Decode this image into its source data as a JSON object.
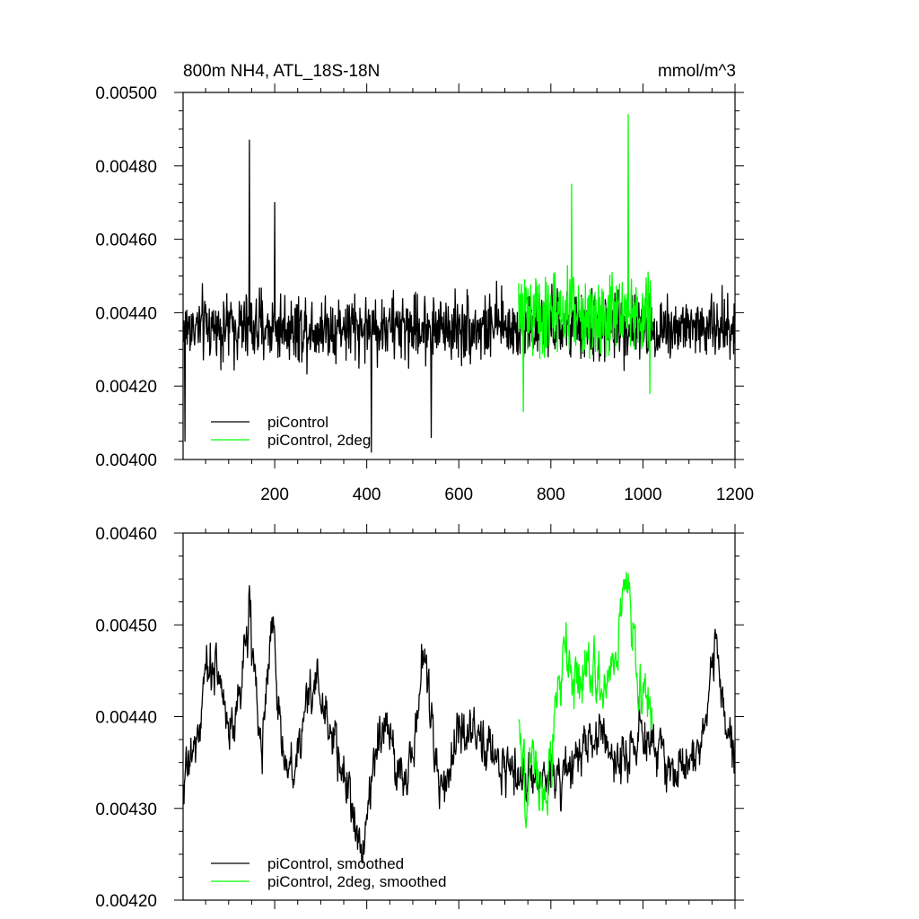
{
  "chart_data": [
    {
      "type": "line",
      "title": "800m NH4, ATL_18S-18N",
      "units": "mmol/m^3",
      "xlim": [
        1,
        1200
      ],
      "ylim": [
        0.004,
        0.005
      ],
      "x_ticks": [
        200,
        400,
        600,
        800,
        1000,
        1200
      ],
      "x_tick_labels": [
        "200",
        "400",
        "600",
        "800",
        "1000",
        "1200"
      ],
      "y_ticks": [
        0.004,
        0.0042,
        0.0044,
        0.0046,
        0.0048,
        0.005
      ],
      "y_tick_labels": [
        "0.00400",
        "0.00420",
        "0.00440",
        "0.00460",
        "0.00480",
        "0.00500"
      ],
      "legend_position": "bottom-left",
      "series": [
        {
          "name": "piControl",
          "color": "#000000",
          "x_range": [
            1,
            1200
          ],
          "mean": 0.00436,
          "noise": 9e-05,
          "spikes": [
            [
              5,
              0.00405
            ],
            [
              145,
              0.00487
            ],
            [
              200,
              0.0047
            ],
            [
              410,
              0.00402
            ],
            [
              540,
              0.00406
            ]
          ]
        },
        {
          "name": "piControl, 2deg",
          "color": "#00ff00",
          "x_range": [
            730,
            1020
          ],
          "mean": 0.0044,
          "noise": 0.00011,
          "spikes": [
            [
              740,
              0.00413
            ],
            [
              845,
              0.00475
            ],
            [
              968,
              0.00494
            ],
            [
              1015,
              0.00418
            ]
          ]
        }
      ]
    },
    {
      "type": "line",
      "xlim": [
        1,
        1200
      ],
      "ylim": [
        0.0042,
        0.0046
      ],
      "x_ticks": [
        200,
        400,
        600,
        800,
        1000,
        1200
      ],
      "y_ticks": [
        0.0042,
        0.0043,
        0.0044,
        0.0045,
        0.0046
      ],
      "y_tick_labels": [
        "0.00420",
        "0.00430",
        "0.00440",
        "0.00450",
        "0.00460"
      ],
      "legend_position": "bottom-left",
      "series": [
        {
          "name": "piControl, smoothed",
          "color": "#000000",
          "x_range": [
            1,
            1200
          ],
          "anchors": [
            [
              1,
              0.00434
            ],
            [
              30,
              0.00437
            ],
            [
              60,
              0.00447
            ],
            [
              80,
              0.00444
            ],
            [
              110,
              0.00438
            ],
            [
              145,
              0.00452
            ],
            [
              170,
              0.00436
            ],
            [
              195,
              0.00452
            ],
            [
              215,
              0.00435
            ],
            [
              240,
              0.00433
            ],
            [
              260,
              0.0044
            ],
            [
              290,
              0.00444
            ],
            [
              330,
              0.00437
            ],
            [
              360,
              0.00432
            ],
            [
              385,
              0.00426
            ],
            [
              410,
              0.00432
            ],
            [
              440,
              0.00441
            ],
            [
              470,
              0.00433
            ],
            [
              500,
              0.00436
            ],
            [
              525,
              0.00447
            ],
            [
              560,
              0.00431
            ],
            [
              600,
              0.00439
            ],
            [
              640,
              0.00437
            ],
            [
              680,
              0.00436
            ],
            [
              730,
              0.00433
            ],
            [
              790,
              0.00433
            ],
            [
              820,
              0.00434
            ],
            [
              870,
              0.00437
            ],
            [
              910,
              0.00438
            ],
            [
              945,
              0.00435
            ],
            [
              990,
              0.00438
            ],
            [
              1030,
              0.00437
            ],
            [
              1060,
              0.00434
            ],
            [
              1100,
              0.00436
            ],
            [
              1130,
              0.00438
            ],
            [
              1160,
              0.00448
            ],
            [
              1180,
              0.00439
            ],
            [
              1200,
              0.00436
            ]
          ],
          "noise": 2.5e-05
        },
        {
          "name": "piControl, 2deg, smoothed",
          "color": "#00ff00",
          "x_range": [
            730,
            1020
          ],
          "anchors": [
            [
              730,
              0.00437
            ],
            [
              745,
              0.0043
            ],
            [
              760,
              0.00437
            ],
            [
              785,
              0.00431
            ],
            [
              800,
              0.00436
            ],
            [
              830,
              0.00447
            ],
            [
              860,
              0.00444
            ],
            [
              880,
              0.00445
            ],
            [
              910,
              0.00443
            ],
            [
              940,
              0.00447
            ],
            [
              960,
              0.00454
            ],
            [
              970,
              0.00453
            ],
            [
              990,
              0.00443
            ],
            [
              1010,
              0.00442
            ],
            [
              1020,
              0.00441
            ]
          ],
          "noise": 2.8e-05
        }
      ]
    }
  ]
}
